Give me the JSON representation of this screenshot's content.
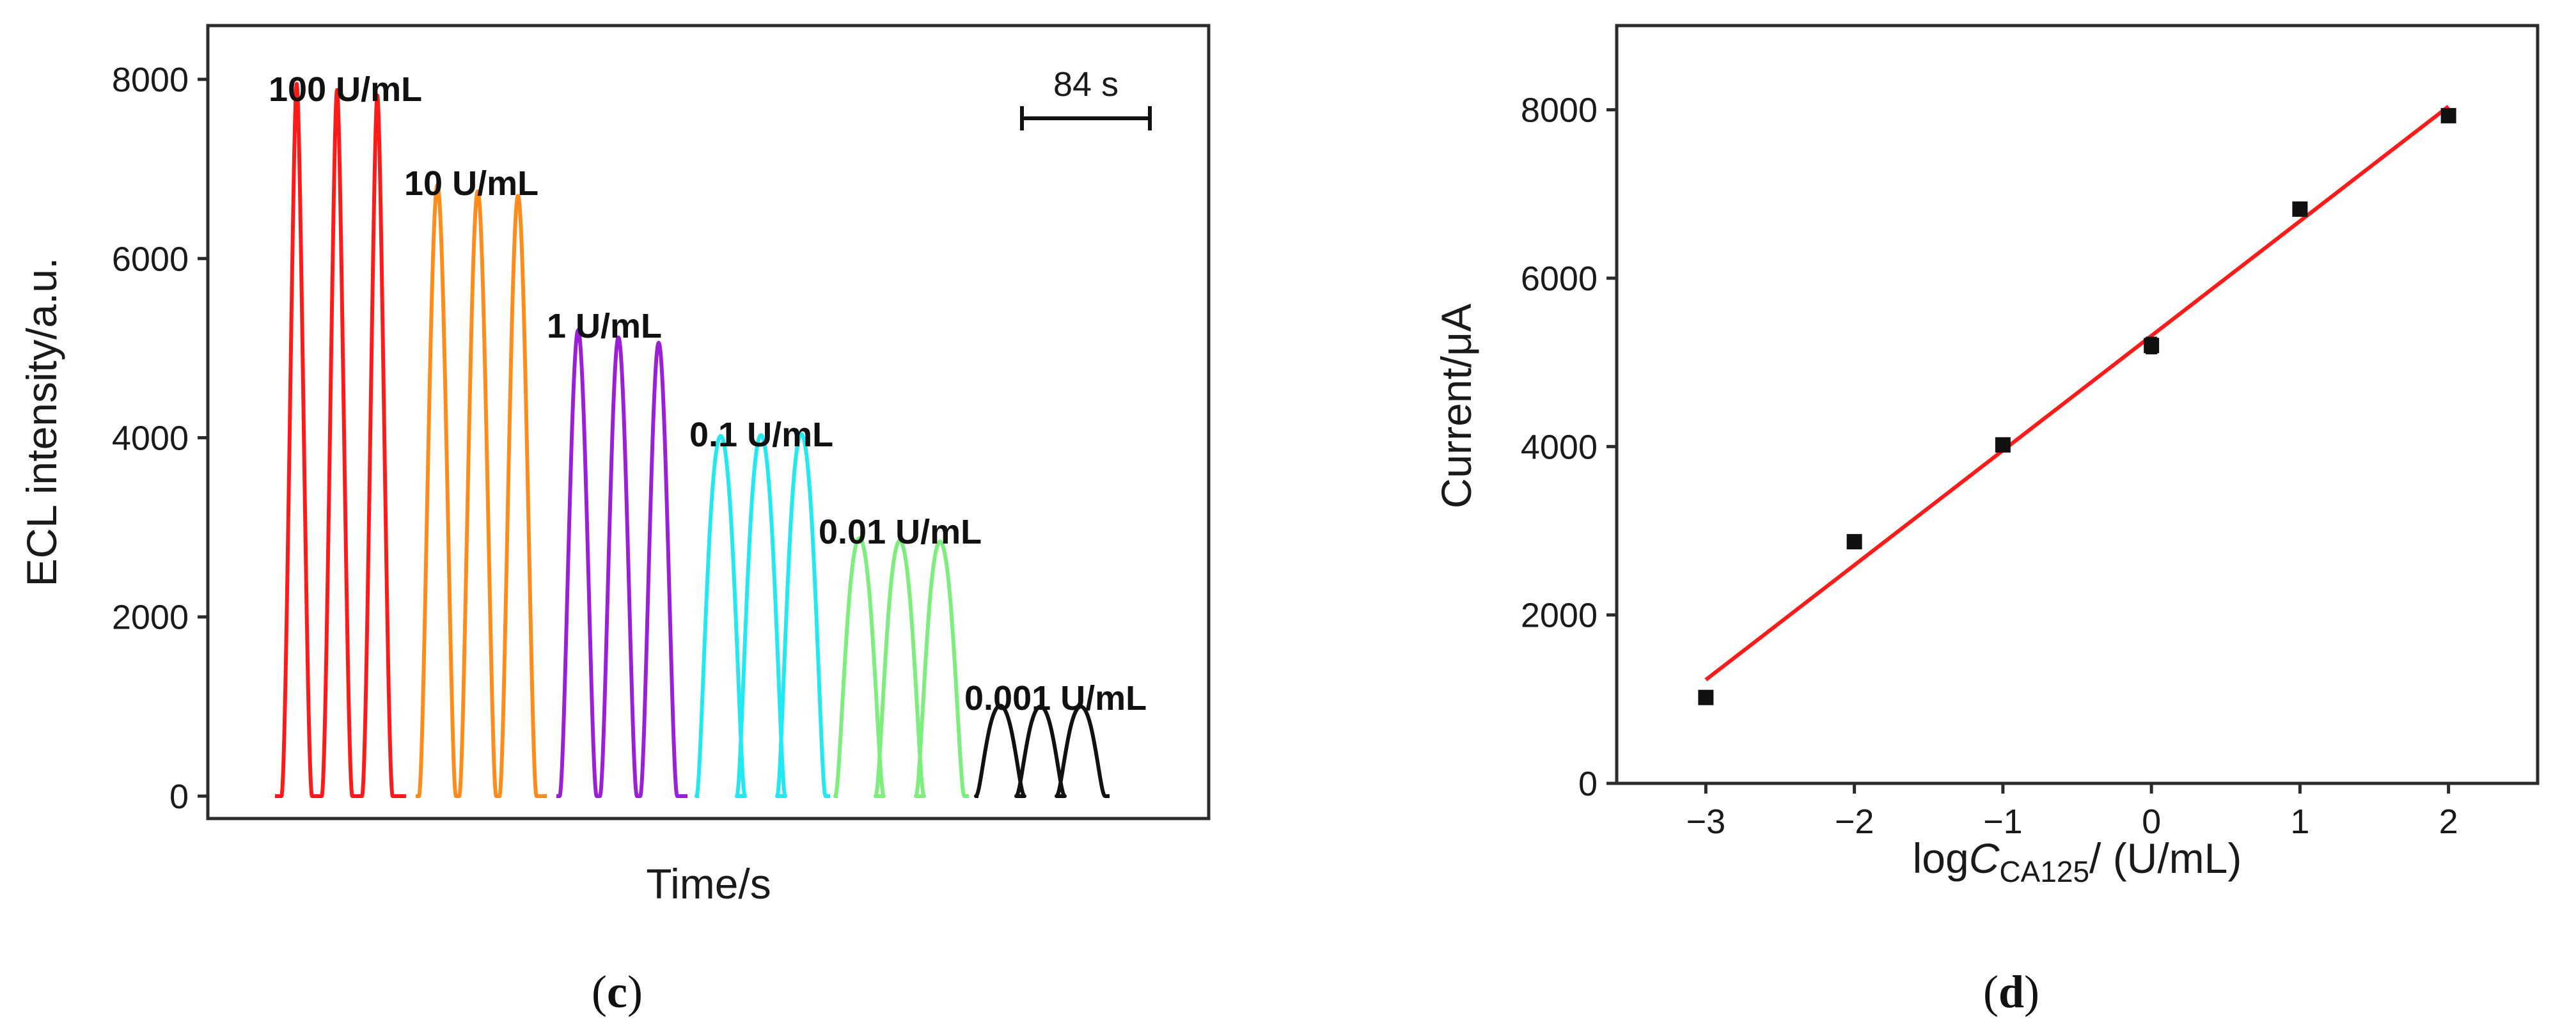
{
  "captions": {
    "left": "(c)",
    "left_letter": "c",
    "right": "(d)",
    "right_letter": "d"
  },
  "chart_data": [
    {
      "id": "c",
      "type": "line",
      "title": "",
      "xlabel": "Time/s",
      "ylabel": "ECL intensity/a.u.",
      "ylim": [
        -250,
        8600
      ],
      "yticks": [
        0,
        2000,
        4000,
        6000,
        8000
      ],
      "scale_bar_label": "84 s",
      "series": [
        {
          "name": "100 U/mL",
          "label": "100 U/mL",
          "color": "#ff1a1a",
          "peaks": [
            7950,
            7880,
            7820
          ],
          "peak_shape": "sharp"
        },
        {
          "name": "10 U/mL",
          "label": "10 U/mL",
          "color": "#ff8c1a",
          "peaks": [
            6820,
            6750,
            6700
          ],
          "peak_shape": "medium"
        },
        {
          "name": "1 U/mL",
          "label": "1 U/mL",
          "color": "#9b1fd8",
          "peaks": [
            5200,
            5120,
            5060
          ],
          "peak_shape": "medium"
        },
        {
          "name": "0.1 U/mL",
          "label": "0.1 U/mL",
          "color": "#22e8f2",
          "peaks": [
            4020,
            4030,
            4040
          ],
          "peak_shape": "broad"
        },
        {
          "name": "0.01 U/mL",
          "label": "0.01 U/mL",
          "color": "#7cee7c",
          "peaks": [
            2880,
            2850,
            2840
          ],
          "peak_shape": "broad"
        },
        {
          "name": "0.001 U/mL",
          "label": "0.001 U/mL",
          "color": "#111111",
          "peaks": [
            1010,
            1000,
            1000
          ],
          "peak_shape": "broad"
        }
      ]
    },
    {
      "id": "d",
      "type": "scatter",
      "title": "",
      "xlabel_prefix": "log",
      "xlabel_var": "C",
      "xlabel_sub": "CA125",
      "xlabel_suffix": "/ (U/mL)",
      "ylabel": "Current/μA",
      "xlim": [
        -3.6,
        2.6
      ],
      "ylim": [
        0,
        9000
      ],
      "xticks": [
        -3,
        -2,
        -1,
        0,
        1,
        2
      ],
      "xtick_labels": [
        "−3",
        "−2",
        "−1",
        "0",
        "1",
        "2"
      ],
      "yticks": [
        0,
        2000,
        4000,
        6000,
        8000
      ],
      "points": [
        {
          "x": -3,
          "y": 1020,
          "err": 60
        },
        {
          "x": -2,
          "y": 2870,
          "err": 70
        },
        {
          "x": -1,
          "y": 4020,
          "err": 60
        },
        {
          "x": 0,
          "y": 5200,
          "err": 90
        },
        {
          "x": 1,
          "y": 6820,
          "err": 70
        },
        {
          "x": 2,
          "y": 7930,
          "err": 70
        }
      ],
      "fit_line": {
        "color": "#ff1a1a",
        "x_start": -3,
        "x_end": 2,
        "y_start": 1230,
        "y_end": 8040
      },
      "marker_color": "#111111"
    }
  ]
}
